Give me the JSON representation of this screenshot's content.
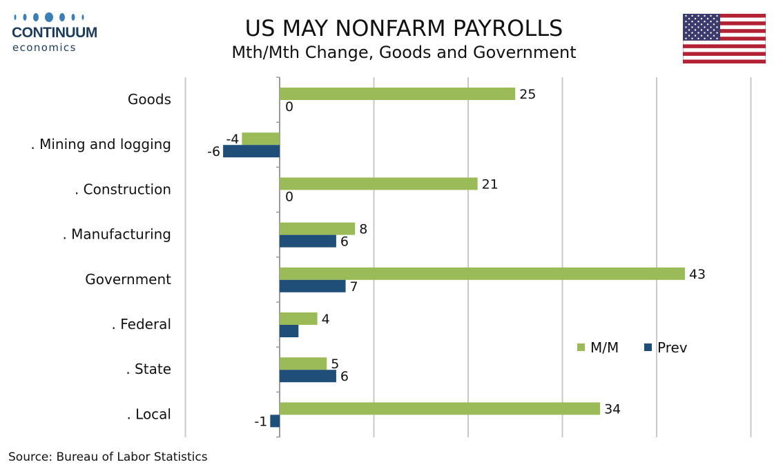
{
  "header": {
    "title": "US MAY NONFARM PAYROLLS",
    "subtitle": "Mth/Mth Change, Goods and Government"
  },
  "logo": {
    "brand": "CONTINUUM",
    "sub": "economics"
  },
  "flag": {
    "icon": "us-flag-icon"
  },
  "source": "Source: Bureau of Labor Statistics",
  "colors": {
    "mm": "#9bbb59",
    "prev": "#1f4e79",
    "grid": "#c8c8c8",
    "logo": "#1d3b5c"
  },
  "chart_data": {
    "type": "bar",
    "orientation": "horizontal",
    "categories": [
      "Goods",
      ". Mining and logging",
      ". Construction",
      ". Manufacturing",
      "Government",
      ". Federal",
      ". State",
      ". Local"
    ],
    "series": [
      {
        "name": "M/M",
        "values": [
          25,
          -4,
          21,
          8,
          43,
          4,
          5,
          34
        ],
        "labels": [
          "25",
          "-4",
          "21",
          "8",
          "43",
          "4",
          "5",
          "34"
        ]
      },
      {
        "name": "Prev",
        "values": [
          0,
          -6,
          0,
          6,
          7,
          2,
          6,
          -1
        ],
        "labels": [
          "0",
          "-6",
          "0",
          "6",
          "7",
          "",
          "6",
          "-1"
        ]
      }
    ],
    "xlim": [
      -10,
      50
    ],
    "grid": true,
    "legend_position": "right"
  }
}
